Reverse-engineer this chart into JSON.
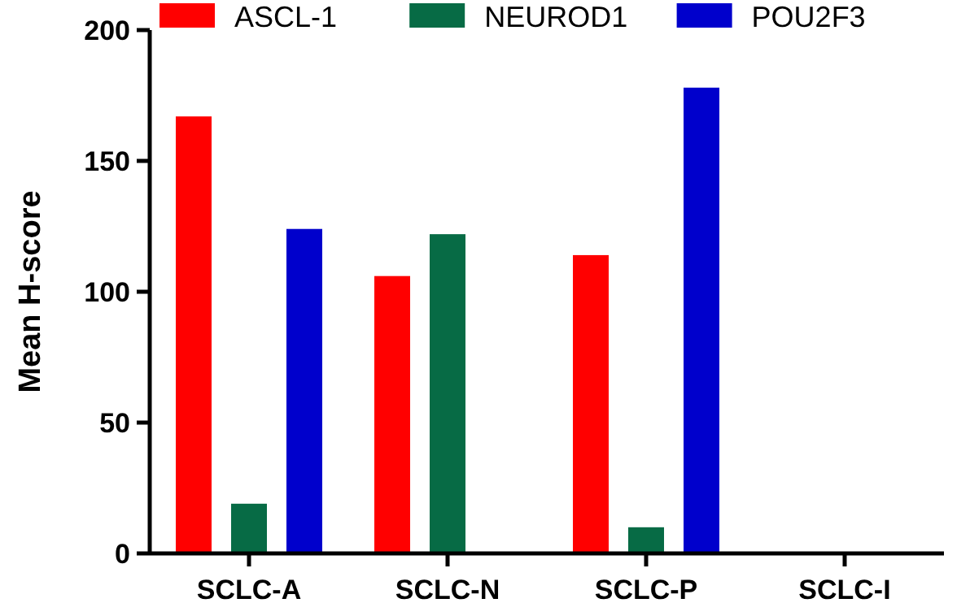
{
  "chart_data": {
    "type": "bar",
    "ylabel": "Mean H-score",
    "categories": [
      "SCLC-A",
      "SCLC-N",
      "SCLC-P",
      "SCLC-I"
    ],
    "series": [
      {
        "name": "ASCL-1",
        "color": "#ff0000",
        "values": [
          167,
          106,
          114,
          0
        ]
      },
      {
        "name": "NEUROD1",
        "color": "#076b45",
        "values": [
          19,
          122,
          10,
          0
        ]
      },
      {
        "name": "POU2F3",
        "color": "#0000cc",
        "values": [
          124,
          0,
          178,
          0
        ]
      }
    ],
    "ylim": [
      0,
      200
    ],
    "yticks": [
      0,
      50,
      100,
      150,
      200
    ],
    "grid": false,
    "legend": "top"
  }
}
